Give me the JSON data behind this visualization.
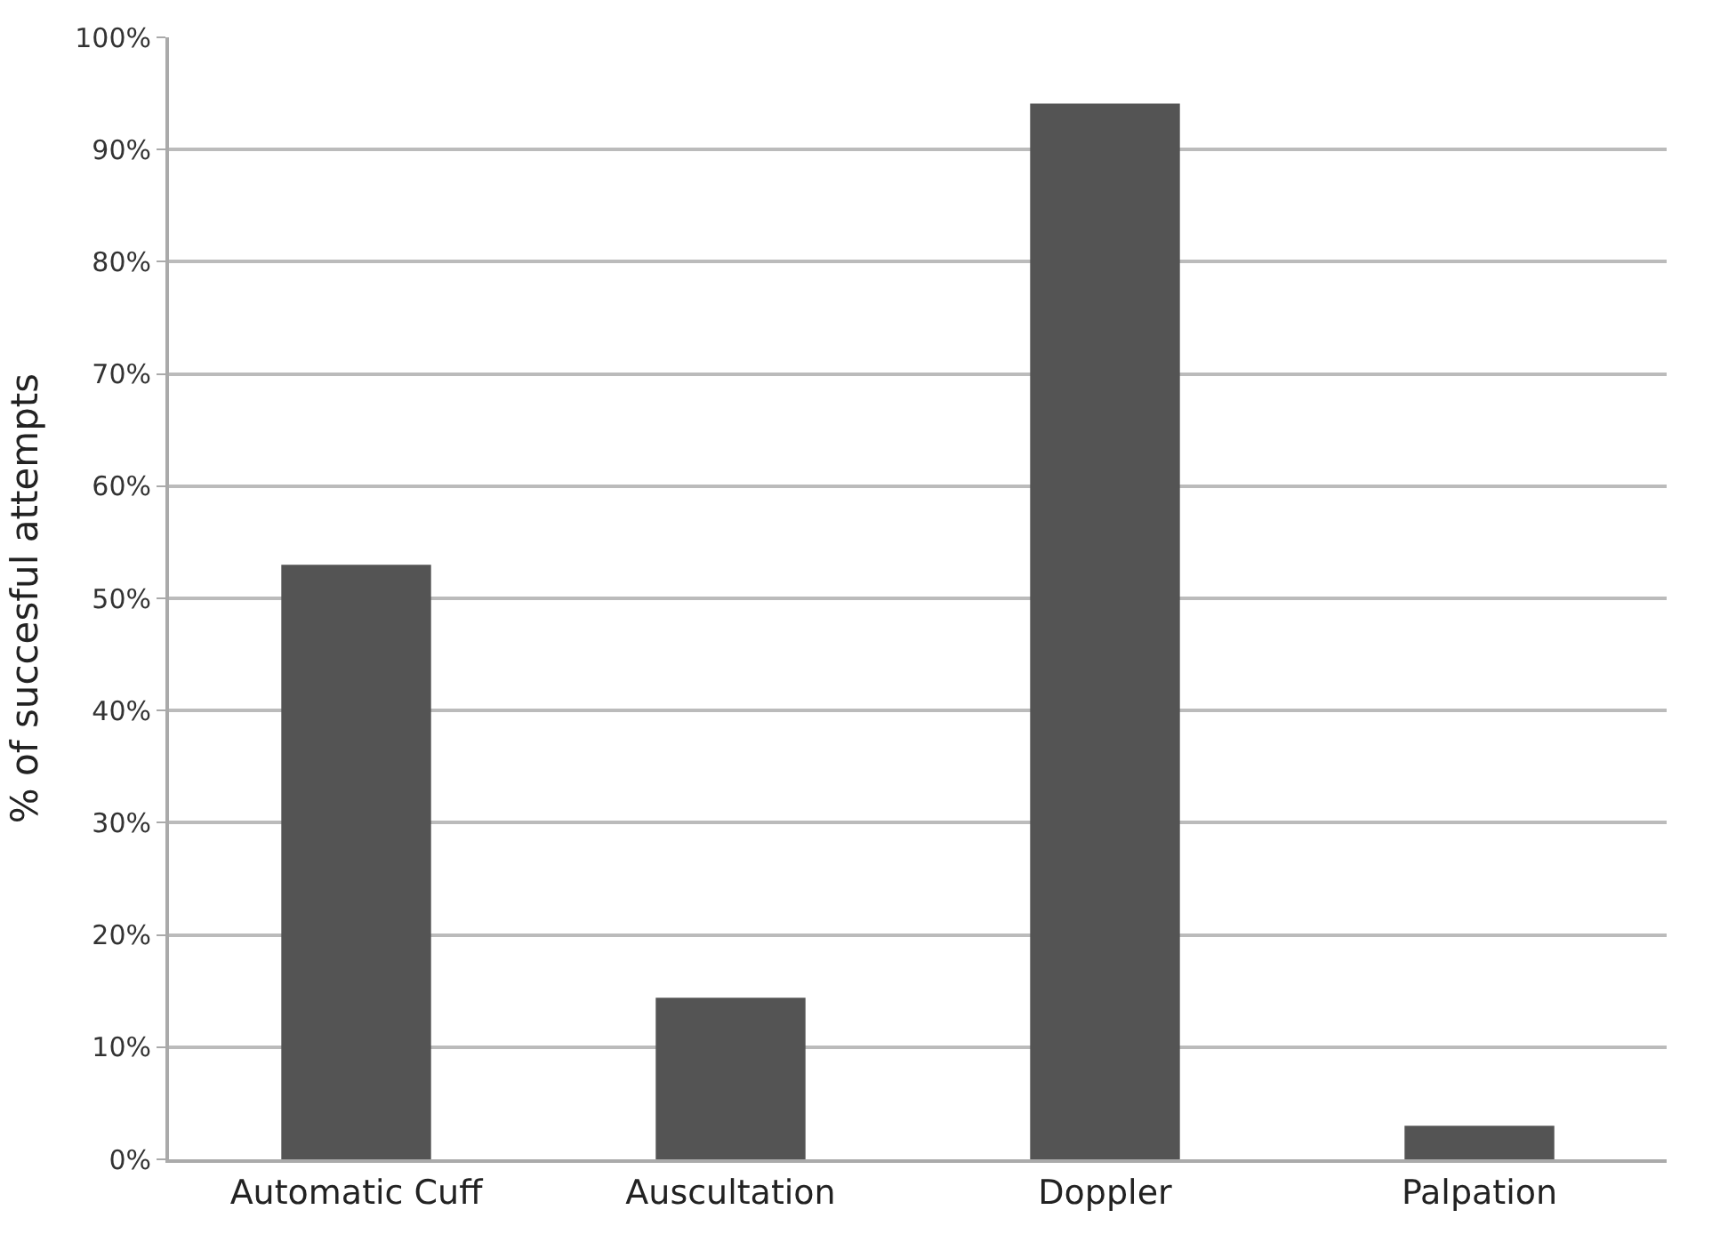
{
  "chart_data": {
    "type": "bar",
    "categories": [
      "Automatic Cuff",
      "Auscultation",
      "Doppler",
      "Palpation"
    ],
    "values": [
      53,
      14.4,
      94.1,
      3.0
    ],
    "color": "#545454",
    "ylabel": "% of succesful attempts",
    "ylim": [
      0,
      100
    ],
    "yticks": [
      {
        "value": 0,
        "label": "0%"
      },
      {
        "value": 10,
        "label": "10%"
      },
      {
        "value": 20,
        "label": "20%"
      },
      {
        "value": 30,
        "label": "30%"
      },
      {
        "value": 40,
        "label": "40%"
      },
      {
        "value": 50,
        "label": "50%"
      },
      {
        "value": 60,
        "label": "60%"
      },
      {
        "value": 70,
        "label": "70%"
      },
      {
        "value": 80,
        "label": "80%"
      },
      {
        "value": 90,
        "label": "90%"
      },
      {
        "value": 100,
        "label": "100%"
      }
    ],
    "grid": "y",
    "legend": false
  }
}
